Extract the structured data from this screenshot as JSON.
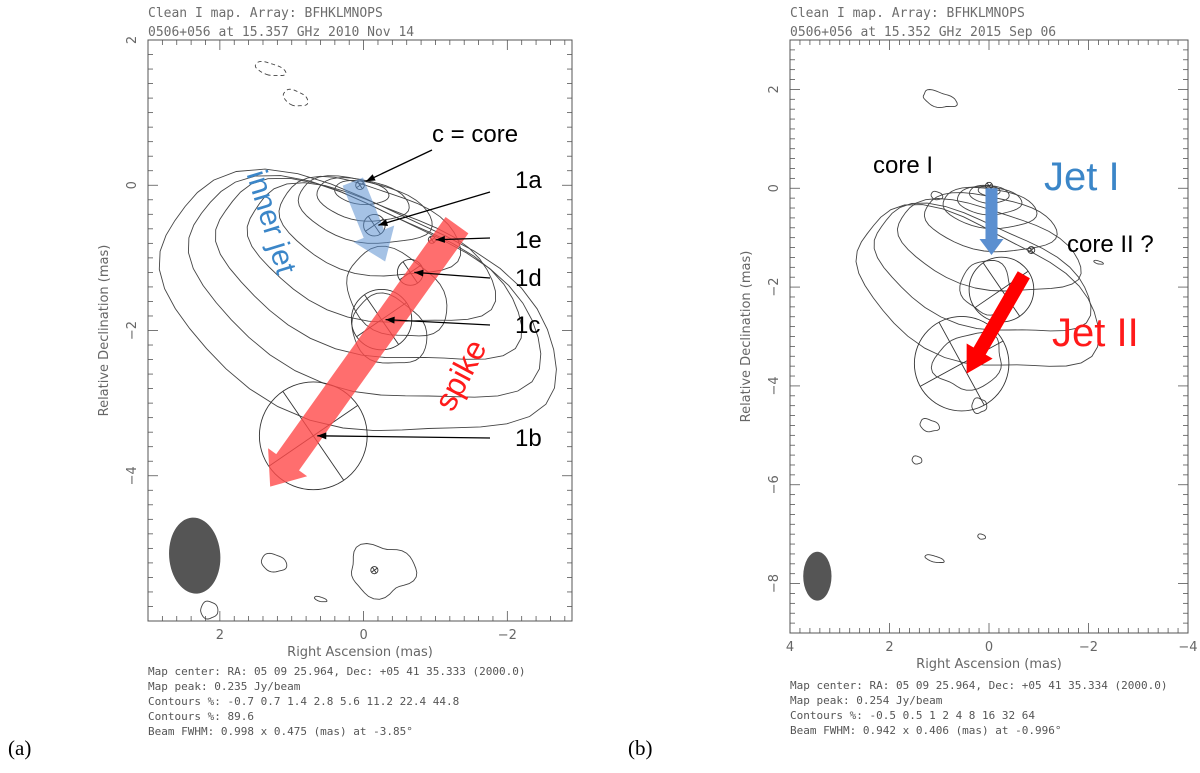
{
  "chart_data": [
    {
      "type": "contour",
      "panel": "(a)",
      "header_line1": "Clean I map.  Array: BFHKLMNOPS",
      "header_line2": "0506+056 at 15.357 GHz 2010 Nov 14",
      "xlabel": "Right Ascension  (mas)",
      "ylabel": "Relative Declination  (mas)",
      "xlim": [
        3.0,
        -2.9
      ],
      "ylim": [
        -6.0,
        2.0
      ],
      "xticks": [
        2,
        0,
        -2
      ],
      "yticks": [
        2,
        0,
        -2,
        -4
      ],
      "footer": [
        "Map center:  RA: 05 09 25.964,  Dec: +05 41 35.333 (2000.0)",
        "Map peak: 0.235 Jy/beam",
        "Contours %: -0.7 0.7 1.4 2.8 5.6 11.2 22.4 44.8",
        "Contours %: 89.6",
        "Beam FWHM: 0.998 x 0.475 (mas) at -3.85°"
      ],
      "components": [
        {
          "name": "c = core",
          "x": 0.05,
          "y": 0.0
        },
        {
          "name": "1a",
          "x": -0.15,
          "y": -0.55
        },
        {
          "name": "1e",
          "x": -0.95,
          "y": -0.75
        },
        {
          "name": "1d",
          "x": -0.65,
          "y": -1.2
        },
        {
          "name": "1c",
          "x": -0.25,
          "y": -1.85
        },
        {
          "name": "1b",
          "x": 0.7,
          "y": -3.45
        }
      ],
      "arrows": [
        {
          "label": "inner jet",
          "color": "#5b8fd0",
          "from": [
            0.15,
            0.05
          ],
          "to": [
            -0.3,
            -1.05
          ]
        },
        {
          "label": "spike",
          "color": "#ff4a4a",
          "from": [
            -1.3,
            -0.55
          ],
          "to": [
            1.3,
            -4.15
          ]
        }
      ]
    },
    {
      "type": "contour",
      "panel": "(b)",
      "header_line1": "Clean I map.  Array: BFHKLMNOPS",
      "header_line2": "0506+056 at 15.352 GHz 2015 Sep 06",
      "xlabel": "Right Ascension  (mas)",
      "ylabel": "Relative Declination  (mas)",
      "xlim": [
        4.0,
        -4.0
      ],
      "ylim": [
        -9.0,
        3.0
      ],
      "xticks": [
        4,
        2,
        0,
        -2,
        -4
      ],
      "yticks": [
        2,
        0,
        -2,
        -4,
        -6,
        -8
      ],
      "footer": [
        "Map center:  RA: 05 09 25.964,  Dec: +05 41 35.334 (2000.0)",
        "Map peak: 0.254 Jy/beam",
        "Contours %: -0.5 0.5 1 2 4 8 16 32 64",
        "Beam FWHM: 0.942 x 0.406 (mas) at -0.996°"
      ],
      "labels": [
        {
          "text": "core I",
          "color": "#000000"
        },
        {
          "text": "Jet I",
          "color": "#3b86c8"
        },
        {
          "text": "core II ?",
          "color": "#000000"
        },
        {
          "text": "Jet II",
          "color": "#ff1a1a"
        }
      ],
      "arrows": [
        {
          "label": "Jet I",
          "color": "#5b8fd0",
          "from": [
            -0.05,
            0.0
          ],
          "to": [
            -0.05,
            -1.35
          ]
        },
        {
          "label": "Jet II",
          "color": "#ff0000",
          "from": [
            -0.7,
            -1.75
          ],
          "to": [
            0.45,
            -3.75
          ]
        }
      ]
    }
  ]
}
